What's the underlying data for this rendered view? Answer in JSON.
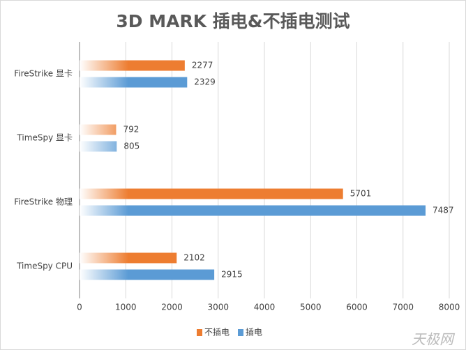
{
  "chart_data": {
    "type": "bar",
    "orientation": "horizontal",
    "title": "3D MARK 插电&不插电测试",
    "categories": [
      "FireStrike 显卡",
      "TimeSpy 显卡",
      "FireStrike 物理",
      "TimeSpy CPU"
    ],
    "series": [
      {
        "name": "不插电",
        "color": "#ed7d31",
        "values": [
          2277,
          792,
          5701,
          2102
        ]
      },
      {
        "name": "插电",
        "color": "#5b9bd5",
        "values": [
          2329,
          805,
          7487,
          2915
        ]
      }
    ],
    "xlim": [
      0,
      8000
    ],
    "xticks": [
      0,
      1000,
      2000,
      3000,
      4000,
      5000,
      6000,
      7000,
      8000
    ],
    "grid": true,
    "legend": "bottom",
    "gradient_fill": true,
    "watermark": "天极网"
  }
}
